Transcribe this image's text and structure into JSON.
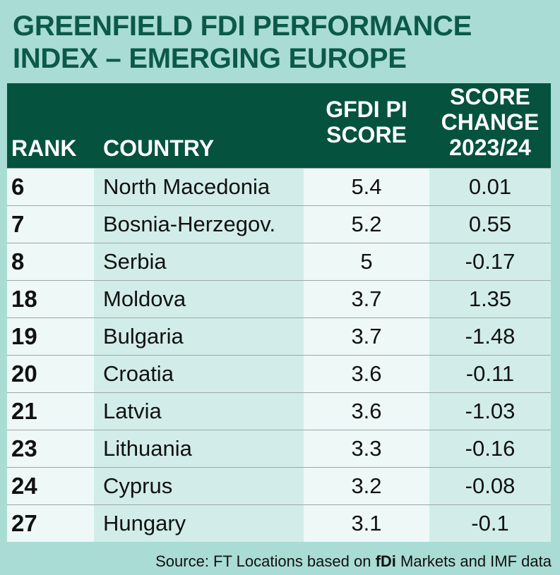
{
  "title": "GREENFIELD FDI PERFORMANCE INDEX – EMERGING EUROPE",
  "table": {
    "header": [
      [
        "RANK"
      ],
      [
        "COUNTRY"
      ],
      [
        "GFDI PI",
        "SCORE"
      ],
      [
        "SCORE",
        "CHANGE",
        "2023/24"
      ]
    ],
    "rows": [
      [
        "6",
        "North Macedonia",
        "5.4",
        "0.01"
      ],
      [
        "7",
        "Bosnia-Herzegov.",
        "5.2",
        "0.55"
      ],
      [
        "8",
        "Serbia",
        "5",
        "-0.17"
      ],
      [
        "18",
        "Moldova",
        "3.7",
        "1.35"
      ],
      [
        "19",
        "Bulgaria",
        "3.7",
        "-1.48"
      ],
      [
        "20",
        "Croatia",
        "3.6",
        "-0.11"
      ],
      [
        "21",
        "Latvia",
        "3.6",
        "-1.03"
      ],
      [
        "23",
        "Lithuania",
        "3.3",
        "-0.16"
      ],
      [
        "24",
        "Cyprus",
        "3.2",
        "-0.08"
      ],
      [
        "27",
        "Hungary",
        "3.1",
        "-0.1"
      ]
    ]
  },
  "source": [
    "Source: FT Locations based on ",
    "fDi",
    " Markets and IMF data"
  ]
}
